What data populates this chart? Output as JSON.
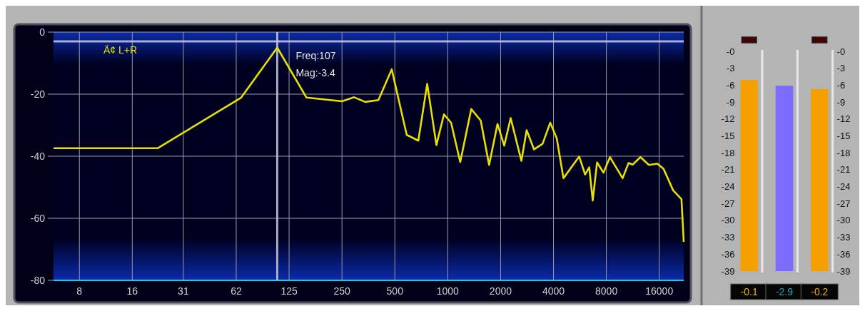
{
  "chart_data": [
    {
      "type": "line",
      "log": "x",
      "grid": true,
      "legend": "top left",
      "xlim": [
        5.7,
        22050
      ],
      "xticks": [
        8,
        16,
        {
          "value": 31.25,
          "label": "31"
        },
        {
          "value": 62.5,
          "label": "62"
        },
        125,
        250,
        500,
        1000,
        2000,
        4000,
        8000,
        16000
      ],
      "ylim": [
        -80,
        0
      ],
      "yticks": [
        0,
        -20,
        -40,
        -60,
        -80
      ],
      "series": [
        {
          "name": "Ä¢ L+R",
          "color": "#e8e000",
          "x": [
            5.7,
            22.4,
            66.7,
            107,
            157,
            250,
            293,
            339,
            403,
            480,
            584,
            680,
            764,
            862,
            952,
            1045,
            1178,
            1361,
            1541,
            1720,
            1920,
            2097,
            2282,
            2626,
            2813,
            3100,
            3467,
            3834,
            4177,
            4558,
            5600,
            6056,
            6390,
            6690,
            7080,
            7700,
            8390,
            9900,
            10700,
            11300,
            12500,
            13980,
            15600,
            16900,
            19200,
            21400,
            21800,
            22050
          ],
          "values": [
            -37.4,
            -37.4,
            -21.1,
            -5.0,
            -21.1,
            -22.3,
            -21.0,
            -22.5,
            -21.9,
            -12.0,
            -33.1,
            -35.0,
            -16.7,
            -36.4,
            -26.5,
            -29.2,
            -41.9,
            -24.8,
            -28.5,
            -42.8,
            -29.6,
            -36.6,
            -27.7,
            -41.5,
            -31.6,
            -37.8,
            -36.0,
            -29.2,
            -34.3,
            -47.1,
            -40.1,
            -45.9,
            -43.6,
            -54.3,
            -42.0,
            -45.3,
            -40.3,
            -47.1,
            -42.2,
            -42.7,
            -40.3,
            -42.8,
            -42.4,
            -44.0,
            -51.0,
            -53.8,
            -62.2,
            -67.6
          ]
        }
      ],
      "ref_lines": [
        {
          "axis": "x",
          "value": 107,
          "color": "#c8c8d8"
        },
        {
          "axis": "y",
          "value": -3,
          "color": "#c8c8e8"
        }
      ],
      "annotations": [
        "Freq:107",
        "Mag:-3.4"
      ]
    },
    {
      "type": "bar",
      "categories": [
        null,
        null,
        null
      ],
      "values": [
        33.9,
        32.9,
        32.3
      ],
      "base": [
        -39,
        -39,
        -39
      ],
      "colors": [
        "#f5a000",
        "#7d6cff",
        "#f5a000"
      ],
      "ylim": [
        -39,
        0
      ],
      "yticks": [
        {
          "value": 0,
          "label": "-0"
        },
        -3,
        -6,
        -9,
        -12,
        -15,
        -18,
        -21,
        -24,
        -27,
        -30,
        -33,
        -36,
        -39
      ],
      "y2lim": [
        -39,
        0
      ],
      "y2ticks": [
        {
          "value": 0,
          "label": "-0"
        },
        -3,
        -6,
        -9,
        -12,
        -15,
        -18,
        -21,
        -24,
        -27,
        -30,
        -33,
        -36,
        -39
      ],
      "annotations": [
        "-0.1",
        "-2.9",
        "-0.2"
      ]
    }
  ]
}
